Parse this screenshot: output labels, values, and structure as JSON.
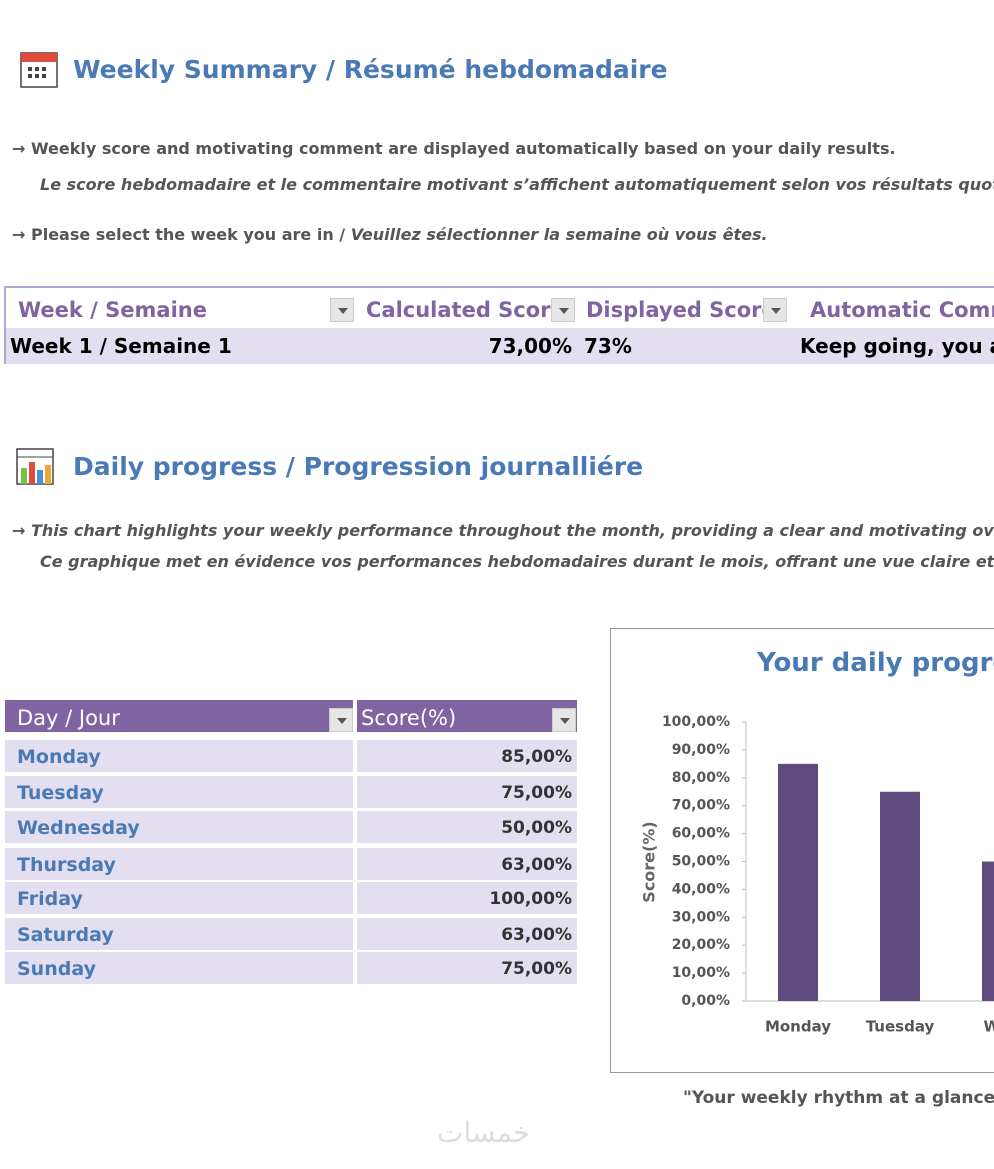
{
  "summary": {
    "title": "Weekly Summary / Résumé hebdomadaire",
    "note_en": "→ Weekly score and motivating comment are displayed automatically based on your daily results.",
    "note_fr": "Le score hebdomadaire et le commentaire motivant s’affichent automatiquement selon vos résultats quotidien",
    "select_en": "→ Please select the week you are in / ",
    "select_fr": "Veuillez sélectionner la semaine où vous êtes.",
    "table": {
      "headers": [
        "Week / Semaine",
        "Calculated Score",
        "Displayed Score",
        "Automatic Comme"
      ],
      "rows": [
        [
          "Week 1 / Semaine 1",
          "73,00%",
          "73%",
          "Keep going, you ar"
        ]
      ]
    }
  },
  "daily": {
    "title": "Daily progress / Progression journalliére",
    "note_en": "→ This chart highlights your weekly performance throughout the month, providing a clear and motivating overvie",
    "note_fr": "Ce graphique met en évidence vos performances hebdomadaires durant le mois, offrant une vue claire et motiv",
    "table": {
      "headers": [
        "Day / Jour",
        "Score(%)"
      ],
      "rows": [
        [
          "Monday",
          "85,00%"
        ],
        [
          "Tuesday",
          "75,00%"
        ],
        [
          "Wednesday",
          "50,00%"
        ],
        [
          "Thursday",
          "63,00%"
        ],
        [
          "Friday",
          "100,00%"
        ],
        [
          "Saturday",
          "63,00%"
        ],
        [
          "Sunday",
          "75,00%"
        ]
      ]
    },
    "caption": "\"Your weekly rhythm at a glance / V"
  },
  "chart_data": {
    "type": "bar",
    "title": "Your daily progress",
    "y_label": "Score(%)",
    "categories": [
      "Monday",
      "Tuesday",
      "Wed"
    ],
    "values": [
      85,
      75,
      50
    ],
    "color": "#5f4b7e",
    "ylim": [
      0,
      100
    ],
    "yticks": [
      {
        "value": 0,
        "label": "0,00%"
      },
      {
        "value": 10,
        "label": "10,00%"
      },
      {
        "value": 20,
        "label": "20,00%"
      },
      {
        "value": 30,
        "label": "30,00%"
      },
      {
        "value": 40,
        "label": "40,00%"
      },
      {
        "value": 50,
        "label": "50,00%"
      },
      {
        "value": 60,
        "label": "60,00%"
      },
      {
        "value": 70,
        "label": "70,00%"
      },
      {
        "value": 80,
        "label": "80,00%"
      },
      {
        "value": 90,
        "label": "90,00%"
      },
      {
        "value": 100,
        "label": "100,00%"
      }
    ]
  },
  "watermark": "خمسات"
}
